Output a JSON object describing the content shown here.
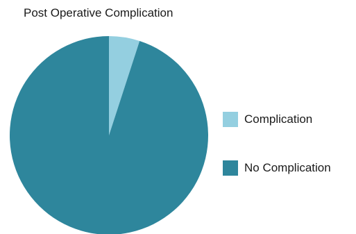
{
  "chart_data": {
    "type": "pie",
    "title": "Post Operative Complication",
    "categories": [
      "Complication",
      "No Complication"
    ],
    "values": [
      5,
      95
    ],
    "colors": [
      "#94cfe0",
      "#2e869c"
    ],
    "legend_placement": "right"
  }
}
